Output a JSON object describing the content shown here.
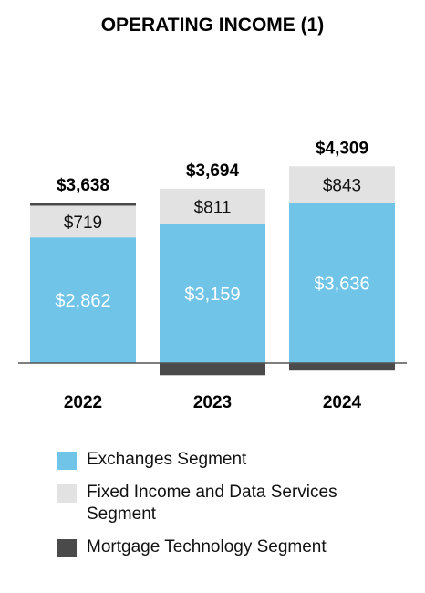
{
  "chart_data": {
    "type": "bar",
    "stacked": true,
    "title": "OPERATING INCOME (1)",
    "categories": [
      "2022",
      "2023",
      "2024"
    ],
    "totals": [
      "$3,638",
      "$3,694",
      "$4,309"
    ],
    "total_values": [
      3638,
      3694,
      4309
    ],
    "series": [
      {
        "name": "Exchanges Segment",
        "color": "#70c4e8",
        "values": [
          2862,
          3159,
          3636
        ],
        "labels": [
          "$2,862",
          "$3,159",
          "$3,636"
        ]
      },
      {
        "name": "Fixed Income and Data Services Segment",
        "color": "#e2e2e2",
        "values": [
          719,
          811,
          843
        ],
        "labels": [
          "$719",
          "$811",
          "$843"
        ]
      },
      {
        "name": "Mortgage Technology Segment",
        "color": "#4a4a4a",
        "values": [
          57,
          -276,
          -170
        ],
        "labels": [
          "",
          "",
          ""
        ]
      }
    ],
    "ylim": [
      -300,
      4500
    ],
    "legend_position": "bottom-left",
    "grid": false
  }
}
